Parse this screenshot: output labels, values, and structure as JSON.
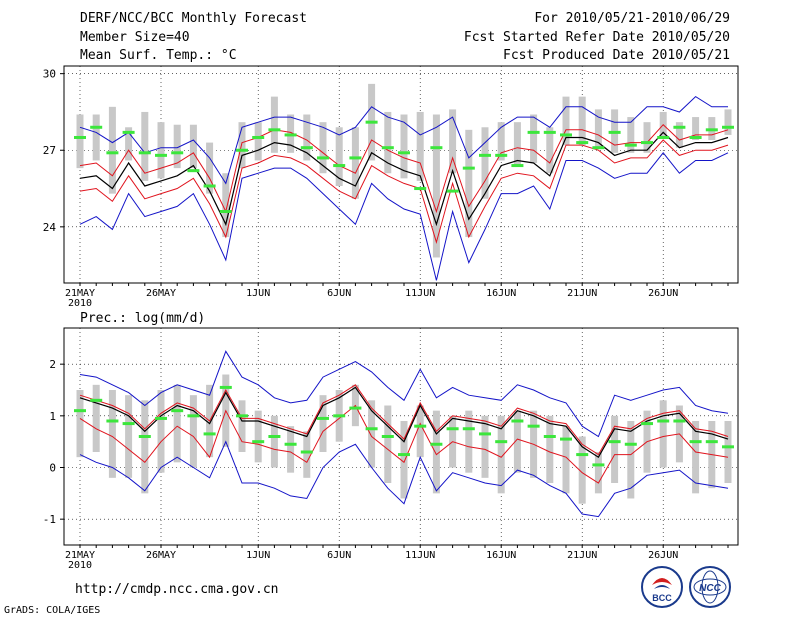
{
  "header": {
    "title": "DERF/NCC/BCC Monthly Forecast",
    "member": "Member Size=40",
    "variable1": "Mean Surf. Temp.: °C",
    "period": "For 2010/05/21-2010/06/29",
    "started": "Fcst Started Refer Date 2010/05/20",
    "produced": "Fcst Produced Date 2010/05/21"
  },
  "footer": {
    "url": "http://cmdp.ncc.cma.gov.cn",
    "grads": "GrADS: COLA/IGES",
    "logo_bcc": "BCC",
    "logo_ncc": "NCC"
  },
  "colors": {
    "box": "#c8c8c8",
    "mean": "#000000",
    "spread": "#e0141e",
    "extreme": "#1414c8",
    "median": "#3ce63c"
  },
  "chart_data": [
    {
      "type": "box-line",
      "title": "",
      "ylabel": "Mean Surf. Temp.: °C",
      "ylim": [
        21.8,
        30.3
      ],
      "yticks": [
        24,
        27,
        30
      ],
      "xticks": [
        {
          "day": 0,
          "label": "21MAY"
        },
        {
          "day": 5,
          "label": "26MAY"
        },
        {
          "day": 11,
          "label": "1JUN"
        },
        {
          "day": 16,
          "label": "6JUN"
        },
        {
          "day": 21,
          "label": "11JUN"
        },
        {
          "day": 26,
          "label": "16JUN"
        },
        {
          "day": 31,
          "label": "21JUN"
        },
        {
          "day": 36,
          "label": "26JUN"
        }
      ],
      "xyear": "2010",
      "days": 40,
      "ensemble_mean": [
        25.9,
        26.0,
        25.5,
        26.5,
        25.6,
        25.8,
        26.0,
        26.4,
        25.4,
        24.1,
        26.8,
        27.0,
        27.3,
        27.2,
        26.9,
        26.4,
        25.9,
        25.6,
        26.9,
        26.5,
        26.2,
        26.0,
        24.1,
        26.2,
        24.3,
        25.3,
        26.4,
        26.6,
        26.5,
        26.0,
        27.5,
        27.5,
        27.3,
        26.8,
        27.0,
        27.0,
        27.7,
        27.1,
        27.3,
        27.3,
        27.5
      ],
      "mean_plus_sd": [
        26.4,
        26.5,
        26.0,
        27.0,
        26.1,
        26.3,
        26.5,
        26.9,
        25.9,
        24.6,
        27.3,
        27.5,
        27.8,
        27.7,
        27.4,
        26.9,
        26.4,
        26.1,
        27.4,
        27.0,
        26.7,
        26.5,
        24.6,
        26.7,
        24.8,
        25.8,
        26.9,
        27.1,
        27.0,
        26.5,
        27.8,
        27.8,
        27.6,
        27.2,
        27.3,
        27.3,
        28.0,
        27.4,
        27.6,
        27.6,
        27.8
      ],
      "mean_minus_sd": [
        25.4,
        25.5,
        25.0,
        26.0,
        25.1,
        25.3,
        25.5,
        25.9,
        24.9,
        23.6,
        26.3,
        26.5,
        26.8,
        26.7,
        26.4,
        25.9,
        25.4,
        25.1,
        26.4,
        26.0,
        25.7,
        25.5,
        23.4,
        25.7,
        23.6,
        24.8,
        25.9,
        26.1,
        26.0,
        25.5,
        27.2,
        27.2,
        27.0,
        26.5,
        26.7,
        26.7,
        27.4,
        26.8,
        27.0,
        27.0,
        27.2
      ],
      "max": [
        27.9,
        27.7,
        27.3,
        27.7,
        26.9,
        27.1,
        27.1,
        27.4,
        26.7,
        25.7,
        27.9,
        28.1,
        28.3,
        28.3,
        28.1,
        27.9,
        27.6,
        27.9,
        28.7,
        28.3,
        28.1,
        27.6,
        27.9,
        28.3,
        26.7,
        27.3,
        27.9,
        28.3,
        28.3,
        27.9,
        28.7,
        28.7,
        28.3,
        28.1,
        28.1,
        28.7,
        28.7,
        28.5,
        29.1,
        28.7,
        28.7
      ],
      "min": [
        24.1,
        24.4,
        23.9,
        25.3,
        24.4,
        24.6,
        24.8,
        25.3,
        24.1,
        22.7,
        25.9,
        26.1,
        26.3,
        26.3,
        25.9,
        25.3,
        24.7,
        24.1,
        25.7,
        25.1,
        24.7,
        24.5,
        21.9,
        24.6,
        22.6,
        23.9,
        25.3,
        25.3,
        25.6,
        24.7,
        26.6,
        26.6,
        26.3,
        25.9,
        26.1,
        26.1,
        26.9,
        26.1,
        26.6,
        26.6,
        26.9
      ],
      "box_high": [
        28.4,
        28.4,
        28.7,
        27.9,
        28.5,
        28.1,
        28.0,
        28.0,
        27.3,
        26.1,
        28.1,
        28.1,
        29.1,
        28.4,
        28.4,
        28.1,
        27.9,
        27.9,
        29.6,
        28.5,
        28.4,
        28.5,
        28.4,
        28.6,
        27.8,
        27.9,
        28.1,
        28.1,
        28.4,
        27.9,
        29.1,
        29.1,
        28.6,
        28.6,
        28.3,
        28.1,
        28.5,
        28.1,
        28.3,
        28.3,
        28.6
      ],
      "box_low": [
        26.3,
        26.6,
        25.3,
        26.6,
        25.8,
        25.9,
        26.3,
        26.3,
        25.3,
        23.6,
        26.3,
        26.6,
        26.9,
        26.9,
        26.6,
        26.1,
        25.6,
        25.1,
        26.6,
        26.1,
        25.9,
        25.8,
        22.8,
        26.1,
        23.6,
        25.1,
        26.6,
        26.4,
        26.5,
        26.1,
        27.2,
        27.2,
        27.1,
        26.9,
        26.9,
        26.9,
        27.5,
        27.1,
        27.4,
        27.4,
        27.6
      ],
      "median": [
        27.5,
        27.9,
        26.9,
        27.7,
        26.9,
        26.8,
        26.9,
        26.2,
        25.6,
        24.6,
        27.0,
        27.5,
        27.8,
        27.6,
        27.1,
        26.7,
        26.4,
        26.7,
        28.1,
        27.1,
        26.9,
        25.5,
        27.1,
        25.4,
        26.3,
        26.8,
        26.8,
        26.4,
        27.7,
        27.7,
        27.6,
        27.3,
        27.1,
        27.7,
        27.2,
        27.3,
        27.5,
        27.9,
        27.5,
        27.8,
        27.9
      ]
    },
    {
      "type": "box-line",
      "title": "",
      "ylabel": "Prec.: log(mm/d)",
      "ylim": [
        -1.5,
        2.7
      ],
      "yticks": [
        -1,
        0,
        1,
        2
      ],
      "xticks": [
        {
          "day": 0,
          "label": "21MAY"
        },
        {
          "day": 5,
          "label": "26MAY"
        },
        {
          "day": 11,
          "label": "1JUN"
        },
        {
          "day": 16,
          "label": "6JUN"
        },
        {
          "day": 21,
          "label": "11JUN"
        },
        {
          "day": 26,
          "label": "16JUN"
        },
        {
          "day": 31,
          "label": "21JUN"
        },
        {
          "day": 36,
          "label": "26JUN"
        }
      ],
      "xyear": "2010",
      "days": 40,
      "ensemble_mean": [
        1.35,
        1.25,
        1.15,
        1.0,
        0.7,
        1.0,
        1.2,
        1.1,
        0.85,
        1.45,
        0.9,
        0.9,
        0.8,
        0.7,
        0.6,
        1.2,
        1.35,
        1.55,
        1.1,
        0.8,
        0.5,
        1.2,
        0.65,
        0.95,
        0.9,
        0.85,
        0.75,
        1.1,
        1.0,
        0.85,
        0.8,
        0.4,
        0.2,
        0.75,
        0.7,
        0.9,
        1.0,
        1.05,
        0.7,
        0.65,
        0.55
      ],
      "mean_plus_sd": [
        1.4,
        1.3,
        1.2,
        1.05,
        0.75,
        1.05,
        1.25,
        1.15,
        0.9,
        1.5,
        0.95,
        0.95,
        0.85,
        0.75,
        0.65,
        1.25,
        1.4,
        1.6,
        1.15,
        0.85,
        0.55,
        1.25,
        0.7,
        1.0,
        0.95,
        0.9,
        0.8,
        1.15,
        1.05,
        0.9,
        0.85,
        0.45,
        0.25,
        0.8,
        0.75,
        0.95,
        1.05,
        1.1,
        0.75,
        0.7,
        0.6
      ],
      "mean_minus_sd": [
        0.95,
        0.75,
        0.6,
        0.35,
        0.1,
        0.5,
        0.8,
        0.6,
        0.2,
        1.1,
        0.5,
        0.45,
        0.35,
        0.3,
        0.1,
        0.7,
        0.95,
        1.2,
        0.6,
        0.35,
        0.1,
        0.85,
        0.25,
        0.5,
        0.4,
        0.35,
        0.2,
        0.55,
        0.45,
        0.3,
        0.2,
        -0.1,
        -0.3,
        0.25,
        0.25,
        0.5,
        0.6,
        0.65,
        0.3,
        0.25,
        0.2
      ],
      "max": [
        1.8,
        1.75,
        1.6,
        1.45,
        1.2,
        1.45,
        1.6,
        1.5,
        1.4,
        2.25,
        1.75,
        1.6,
        1.35,
        1.25,
        1.3,
        1.75,
        1.9,
        2.05,
        1.85,
        1.55,
        1.3,
        1.9,
        1.35,
        1.55,
        1.4,
        1.35,
        1.3,
        1.6,
        1.5,
        1.35,
        1.25,
        0.8,
        0.6,
        1.4,
        1.3,
        1.4,
        1.5,
        1.55,
        1.2,
        1.1,
        1.05
      ],
      "min": [
        0.25,
        0.1,
        0.0,
        -0.2,
        -0.45,
        0.0,
        0.2,
        0.0,
        -0.2,
        0.5,
        -0.3,
        -0.3,
        -0.4,
        -0.55,
        -0.6,
        0.0,
        0.3,
        0.45,
        0.0,
        -0.4,
        -0.7,
        0.2,
        -0.45,
        -0.1,
        -0.2,
        -0.3,
        -0.35,
        -0.05,
        -0.15,
        -0.35,
        -0.5,
        -0.9,
        -0.95,
        -0.5,
        -0.4,
        -0.15,
        -0.1,
        -0.05,
        -0.3,
        -0.35,
        -0.4
      ],
      "box_high": [
        1.5,
        1.6,
        1.5,
        1.4,
        1.3,
        1.5,
        1.6,
        1.4,
        1.6,
        1.8,
        1.3,
        1.1,
        1.0,
        0.8,
        0.7,
        1.4,
        1.5,
        1.6,
        1.3,
        1.2,
        0.9,
        1.2,
        1.1,
        1.0,
        1.1,
        1.0,
        1.0,
        1.1,
        1.1,
        1.0,
        0.8,
        0.6,
        0.3,
        1.0,
        0.9,
        1.1,
        1.3,
        1.2,
        0.9,
        0.9,
        0.9
      ],
      "box_low": [
        0.2,
        0.3,
        -0.2,
        -0.2,
        -0.5,
        -0.1,
        0.1,
        0.0,
        0.2,
        0.4,
        0.3,
        0.1,
        0.0,
        -0.1,
        -0.2,
        0.3,
        0.5,
        0.8,
        0.0,
        -0.3,
        -0.6,
        0.2,
        -0.5,
        0.0,
        -0.1,
        -0.2,
        -0.5,
        -0.1,
        -0.2,
        -0.3,
        -0.5,
        -0.7,
        -0.5,
        -0.3,
        -0.6,
        -0.1,
        0.0,
        0.1,
        -0.5,
        -0.4,
        -0.3
      ],
      "median": [
        1.1,
        1.3,
        0.9,
        0.85,
        0.6,
        0.95,
        1.1,
        1.0,
        0.65,
        1.55,
        1.0,
        0.5,
        0.6,
        0.45,
        0.3,
        0.95,
        1.0,
        1.15,
        0.75,
        0.6,
        0.25,
        0.8,
        0.45,
        0.75,
        0.75,
        0.65,
        0.5,
        0.9,
        0.8,
        0.6,
        0.55,
        0.25,
        0.05,
        0.5,
        0.45,
        0.85,
        0.9,
        0.9,
        0.5,
        0.5,
        0.4
      ]
    }
  ]
}
